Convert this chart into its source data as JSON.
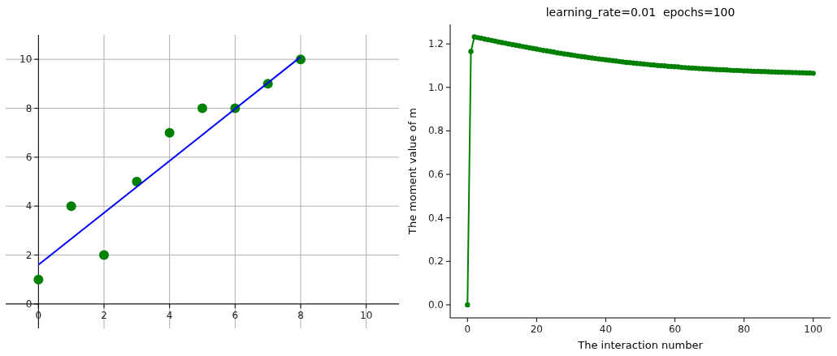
{
  "chart_data": [
    {
      "type": "scatter",
      "xlim": [
        -1,
        11
      ],
      "ylim": [
        -1,
        11
      ],
      "xticks": [
        0,
        2,
        4,
        6,
        8,
        10
      ],
      "yticks": [
        0,
        2,
        4,
        6,
        8,
        10
      ],
      "grid": true,
      "series": [
        {
          "type": "scatter",
          "color": "#008000",
          "marker": "circle",
          "x": [
            0,
            1,
            2,
            3,
            4,
            5,
            6,
            7,
            8
          ],
          "values": [
            1,
            4,
            2,
            5,
            7,
            8,
            8,
            9,
            10
          ]
        },
        {
          "type": "line",
          "color": "#0000ff",
          "x": [
            0,
            8
          ],
          "values": [
            1.6,
            10.1
          ]
        }
      ]
    },
    {
      "type": "line",
      "title": "learning_rate=0.01  epochs=100",
      "xlabel": "The interaction number",
      "ylabel": "The moment value of m",
      "xlim": [
        -5,
        105
      ],
      "ylim": [
        -0.06,
        1.29
      ],
      "xticks": [
        0,
        20,
        40,
        60,
        80,
        100
      ],
      "yticks": [
        {
          "value": 0,
          "label": "0.0"
        },
        0.2,
        0.4,
        0.6,
        0.8,
        {
          "value": 1,
          "label": "1.0"
        },
        1.2
      ],
      "marker": "circle",
      "series": [
        {
          "color": "#008000",
          "x": [
            0,
            1,
            2,
            3,
            4,
            5,
            6,
            7,
            8,
            9,
            10,
            11,
            12,
            13,
            14,
            15,
            16,
            17,
            18,
            19,
            20,
            21,
            22,
            23,
            24,
            25,
            26,
            27,
            28,
            29,
            30,
            31,
            32,
            33,
            34,
            35,
            36,
            37,
            38,
            39,
            40,
            41,
            42,
            43,
            44,
            45,
            46,
            47,
            48,
            49,
            50,
            51,
            52,
            53,
            54,
            55,
            56,
            57,
            58,
            59,
            60,
            61,
            62,
            63,
            64,
            65,
            66,
            67,
            68,
            69,
            70,
            71,
            72,
            73,
            74,
            75,
            76,
            77,
            78,
            79,
            80,
            81,
            82,
            83,
            84,
            85,
            86,
            87,
            88,
            89,
            90,
            91,
            92,
            93,
            94,
            95,
            96,
            97,
            98,
            99,
            100
          ],
          "values": [
            0,
            1.165,
            1.232,
            1.229,
            1.226,
            1.222,
            1.219,
            1.216,
            1.213,
            1.209,
            1.206,
            1.203,
            1.2,
            1.197,
            1.194,
            1.191,
            1.188,
            1.185,
            1.182,
            1.179,
            1.176,
            1.173,
            1.17,
            1.168,
            1.165,
            1.162,
            1.159,
            1.157,
            1.154,
            1.152,
            1.149,
            1.147,
            1.144,
            1.142,
            1.14,
            1.137,
            1.135,
            1.133,
            1.131,
            1.129,
            1.127,
            1.125,
            1.123,
            1.121,
            1.119,
            1.117,
            1.115,
            1.114,
            1.112,
            1.11,
            1.109,
            1.107,
            1.106,
            1.104,
            1.103,
            1.101,
            1.1,
            1.099,
            1.097,
            1.096,
            1.095,
            1.094,
            1.092,
            1.091,
            1.09,
            1.089,
            1.088,
            1.087,
            1.086,
            1.085,
            1.084,
            1.083,
            1.082,
            1.081,
            1.081,
            1.08,
            1.079,
            1.078,
            1.078,
            1.077,
            1.076,
            1.076,
            1.075,
            1.074,
            1.074,
            1.073,
            1.073,
            1.072,
            1.071,
            1.071,
            1.07,
            1.07,
            1.069,
            1.069,
            1.068,
            1.068,
            1.067,
            1.067,
            1.066,
            1.066,
            1.065
          ]
        }
      ]
    }
  ]
}
